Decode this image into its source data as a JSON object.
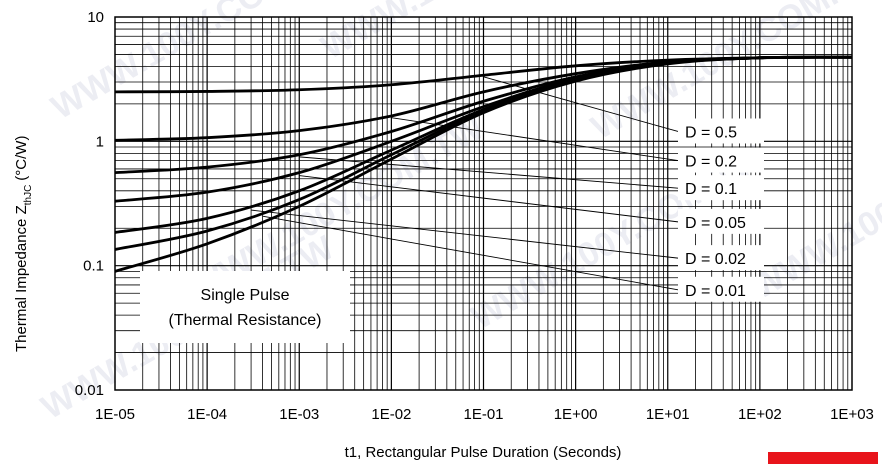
{
  "chart_data": {
    "type": "line",
    "title": "",
    "xlabel": "t1, Rectangular Pulse Duration (Seconds)",
    "ylabel": "Thermal Impedance Z",
    "ylabel_sub": "thJC",
    "ylabel_unit": "(°C/W)",
    "x_scale": "log",
    "y_scale": "log",
    "xlim": [
      1e-05,
      1000
    ],
    "ylim": [
      0.01,
      10
    ],
    "grid": true,
    "x_ticks": [
      {
        "value": 1e-05,
        "label": "1E-05"
      },
      {
        "value": 0.0001,
        "label": "1E-04"
      },
      {
        "value": 0.001,
        "label": "1E-03"
      },
      {
        "value": 0.01,
        "label": "1E-02"
      },
      {
        "value": 0.1,
        "label": "1E-01"
      },
      {
        "value": 1,
        "label": "1E+00"
      },
      {
        "value": 10,
        "label": "1E+01"
      },
      {
        "value": 100,
        "label": "1E+02"
      },
      {
        "value": 1000,
        "label": "1E+03"
      }
    ],
    "y_ticks": [
      {
        "value": 0.01,
        "label": "0.01"
      },
      {
        "value": 0.1,
        "label": "0.1"
      },
      {
        "value": 1,
        "label": "1"
      },
      {
        "value": 10,
        "label": "10"
      }
    ],
    "series": [
      {
        "name": "D = 0.5",
        "x": [
          1e-05,
          0.0001,
          0.001,
          0.01,
          0.1,
          1,
          10,
          100,
          1000
        ],
        "y": [
          2.5,
          2.52,
          2.6,
          2.85,
          3.4,
          4.05,
          4.5,
          4.7,
          4.75
        ]
      },
      {
        "name": "D = 0.2",
        "x": [
          1e-05,
          0.0001,
          0.001,
          0.01,
          0.1,
          1,
          10,
          100,
          1000
        ],
        "y": [
          1.02,
          1.07,
          1.22,
          1.6,
          2.5,
          3.5,
          4.35,
          4.7,
          4.75
        ]
      },
      {
        "name": "D = 0.1",
        "x": [
          1e-05,
          0.0001,
          0.001,
          0.01,
          0.1,
          1,
          10,
          100,
          1000
        ],
        "y": [
          0.56,
          0.62,
          0.78,
          1.2,
          2.1,
          3.3,
          4.3,
          4.7,
          4.75
        ]
      },
      {
        "name": "D = 0.05",
        "x": [
          1e-05,
          0.0001,
          0.001,
          0.01,
          0.1,
          1,
          10,
          100,
          1000
        ],
        "y": [
          0.33,
          0.39,
          0.56,
          1.0,
          1.9,
          3.2,
          4.25,
          4.7,
          4.75
        ]
      },
      {
        "name": "D = 0.02",
        "x": [
          1e-05,
          0.0001,
          0.001,
          0.01,
          0.1,
          1,
          10,
          100,
          1000
        ],
        "y": [
          0.185,
          0.24,
          0.4,
          0.85,
          1.8,
          3.15,
          4.25,
          4.7,
          4.75
        ]
      },
      {
        "name": "D = 0.01",
        "x": [
          1e-05,
          0.0001,
          0.001,
          0.01,
          0.1,
          1,
          10,
          100,
          1000
        ],
        "y": [
          0.135,
          0.19,
          0.34,
          0.78,
          1.75,
          3.1,
          4.25,
          4.7,
          4.75
        ]
      },
      {
        "name": "Single Pulse (Thermal Resistance)",
        "x": [
          1e-05,
          0.0001,
          0.001,
          0.01,
          0.1,
          1,
          10,
          100,
          1000
        ],
        "y": [
          0.09,
          0.15,
          0.3,
          0.72,
          1.7,
          3.05,
          4.2,
          4.7,
          4.75
        ]
      }
    ],
    "annotations": [
      {
        "id": "d05",
        "text": "D = 0.5",
        "x": 10,
        "y": 1.2,
        "target_x": 0.1,
        "target_y": 3.3
      },
      {
        "id": "d02",
        "text": "D = 0.2",
        "x": 10,
        "y": 0.7,
        "target_x": 0.01,
        "target_y": 1.55
      },
      {
        "id": "d01",
        "text": "D = 0.1",
        "x": 10,
        "y": 0.42,
        "target_x": 0.001,
        "target_y": 0.75
      },
      {
        "id": "d005",
        "text": "D = 0.05",
        "x": 10,
        "y": 0.225,
        "target_x": 0.001,
        "target_y": 0.53
      },
      {
        "id": "d002",
        "text": "D = 0.02",
        "x": 10,
        "y": 0.115,
        "target_x": 0.0003,
        "target_y": 0.28
      },
      {
        "id": "d001",
        "text": "D = 0.01",
        "x": 10,
        "y": 0.064,
        "target_x": 0.0004,
        "target_y": 0.25
      }
    ],
    "single_pulse_label": [
      "Single Pulse",
      "(Thermal Resistance)"
    ]
  },
  "watermark": "WWW.100Y.COM.TW"
}
